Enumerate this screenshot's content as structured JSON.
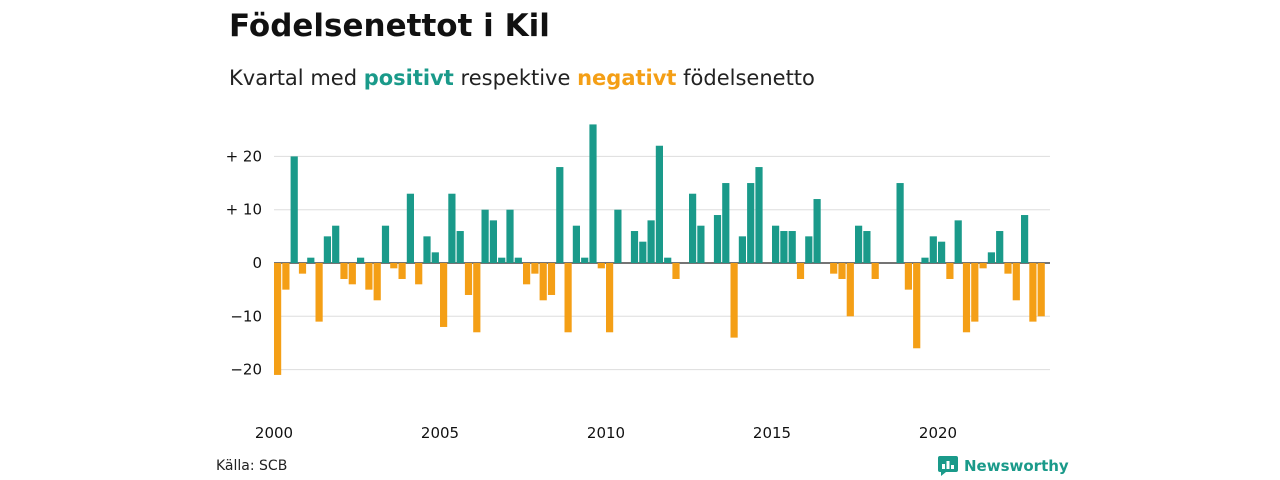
{
  "header": {
    "title": "Födelsenettot i Kil",
    "subtitle_prefix": "Kvartal med",
    "subtitle_positive": "positivt",
    "subtitle_middle": "respektive",
    "subtitle_negative": "negativt",
    "subtitle_suffix": "födelsenetto"
  },
  "footer": {
    "source": "Källa: SCB",
    "brand": "Newsworthy"
  },
  "colors": {
    "positive": "#1a9a8a",
    "negative": "#f49f16",
    "grid": "#dddddd"
  },
  "chart_data": {
    "type": "bar",
    "title": "Födelsenettot i Kil",
    "subtitle": "Kvartal med positivt respektive negativt födelsenetto",
    "x_start_year": 2000,
    "periods_per_year": 4,
    "x_ticks": [
      "2000",
      "2005",
      "2010",
      "2015",
      "2020"
    ],
    "y_ticks": [
      {
        "value": 20,
        "label": "+ 20"
      },
      {
        "value": 10,
        "label": "+ 10"
      },
      {
        "value": 0,
        "label": "0"
      },
      {
        "value": -10,
        "label": "−10"
      },
      {
        "value": -20,
        "label": "−20"
      }
    ],
    "ylim": [
      -22,
      27
    ],
    "grid": true,
    "values": [
      -21,
      -5,
      20,
      -2,
      1,
      -11,
      5,
      7,
      -3,
      -4,
      1,
      -5,
      -7,
      7,
      -1,
      -3,
      13,
      -4,
      5,
      2,
      -12,
      13,
      6,
      -6,
      -13,
      10,
      8,
      1,
      10,
      1,
      -4,
      -2,
      -7,
      -6,
      18,
      -13,
      7,
      1,
      26,
      -1,
      -13,
      10,
      0,
      6,
      4,
      8,
      22,
      1,
      -3,
      0,
      13,
      7,
      0,
      9,
      15,
      -14,
      5,
      15,
      18,
      0,
      7,
      6,
      6,
      -3,
      5,
      12,
      0,
      -2,
      -3,
      -10,
      7,
      6,
      -3,
      0,
      0,
      15,
      -5,
      -16,
      1,
      5,
      4,
      -3,
      8,
      -13,
      -11,
      -1,
      2,
      6,
      -2,
      -7,
      9,
      -11,
      -10
    ]
  }
}
